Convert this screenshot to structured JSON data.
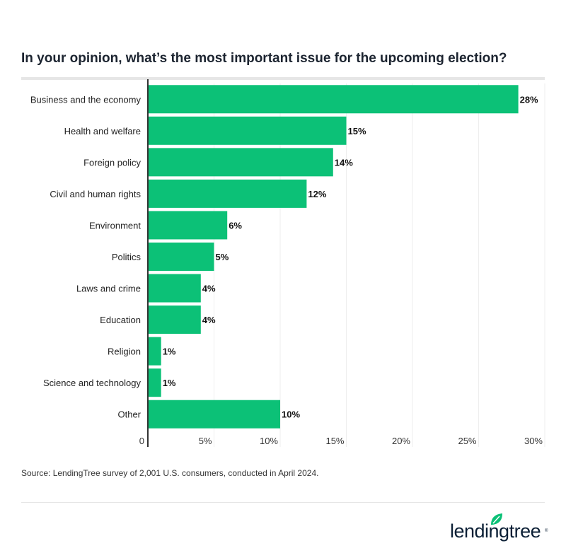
{
  "title": "In your opinion, what’s the most important issue for the upcoming election?",
  "source": "Source: LendingTree survey of 2,001 U.S. consumers, conducted in April 2024.",
  "logo_text": "lendingtree",
  "colors": {
    "bar": "#0cc177",
    "axis": "#333333",
    "grid": "#eeeeee"
  },
  "chart_data": {
    "type": "bar",
    "orientation": "horizontal",
    "categories": [
      "Business and the economy",
      "Health and welfare",
      "Foreign policy",
      "Civil and human rights",
      "Environment",
      "Politics",
      "Laws and crime",
      "Education",
      "Religion",
      "Science and technology",
      "Other"
    ],
    "values": [
      28,
      15,
      14,
      12,
      6,
      5,
      4,
      4,
      1,
      1,
      10
    ],
    "data_labels": [
      "28%",
      "15%",
      "14%",
      "12%",
      "6%",
      "5%",
      "4%",
      "4%",
      "1%",
      "1%",
      "10%"
    ],
    "xlim": [
      0,
      30
    ],
    "xticks": [
      0,
      5,
      10,
      15,
      20,
      25,
      30
    ],
    "xtick_labels": [
      "0",
      "5%",
      "10%",
      "15%",
      "20%",
      "25%",
      "30%"
    ],
    "grid": "vertical",
    "legend": "none"
  }
}
